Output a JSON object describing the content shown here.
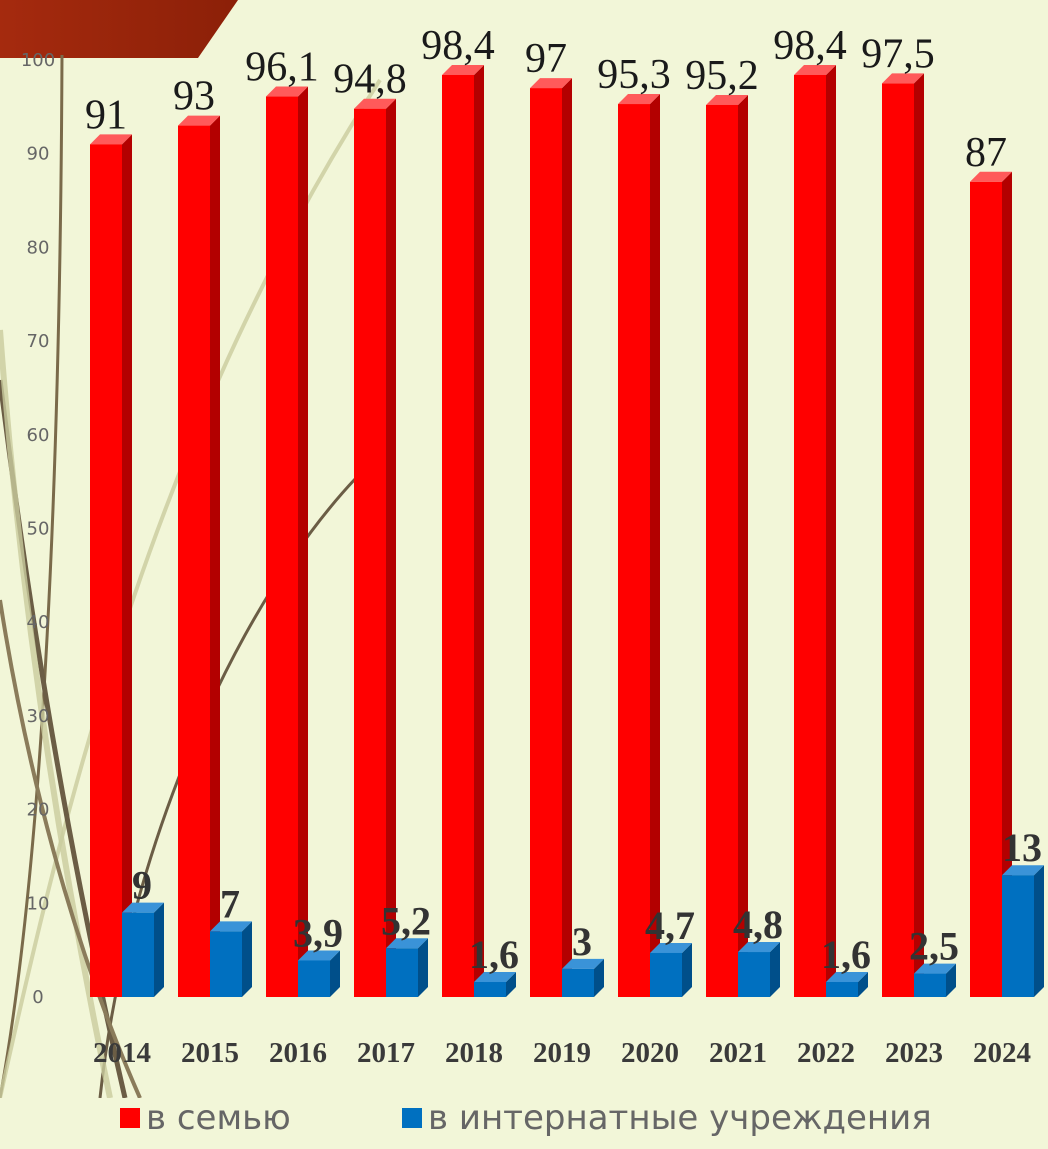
{
  "chart_data": {
    "type": "bar",
    "categories": [
      "2014",
      "2015",
      "2016",
      "2017",
      "2018",
      "2019",
      "2020",
      "2021",
      "2022",
      "2023",
      "2024"
    ],
    "series": [
      {
        "name": "в семью",
        "color": "#ff0000",
        "values": [
          91,
          93,
          96.1,
          94.8,
          98.4,
          97,
          95.3,
          95.2,
          98.4,
          97.5,
          87
        ],
        "labels": [
          "91",
          "93",
          "96,1",
          "94,8",
          "98,4",
          "97",
          "95,3",
          "95,2",
          "98,4",
          "97,5",
          "87"
        ]
      },
      {
        "name": "в интернатные учреждения",
        "color": "#0070c0",
        "values": [
          9,
          7,
          3.9,
          5.2,
          1.6,
          3,
          4.7,
          4.8,
          1.6,
          2.5,
          13
        ],
        "labels": [
          "9",
          "7",
          "3,9",
          "5,2",
          "1,6",
          "3",
          "4,7",
          "4,8",
          "1,6",
          "2,5",
          "13"
        ]
      }
    ],
    "yticks": [
      "0",
      "10",
      "20",
      "30",
      "40",
      "50",
      "60",
      "70",
      "80",
      "90",
      "100"
    ],
    "ylim": [
      0,
      100
    ],
    "grid": false,
    "legend_position": "bottom",
    "style": "3d"
  },
  "legend": {
    "item1": "в семью",
    "item2": "в интернатные учреждения"
  }
}
